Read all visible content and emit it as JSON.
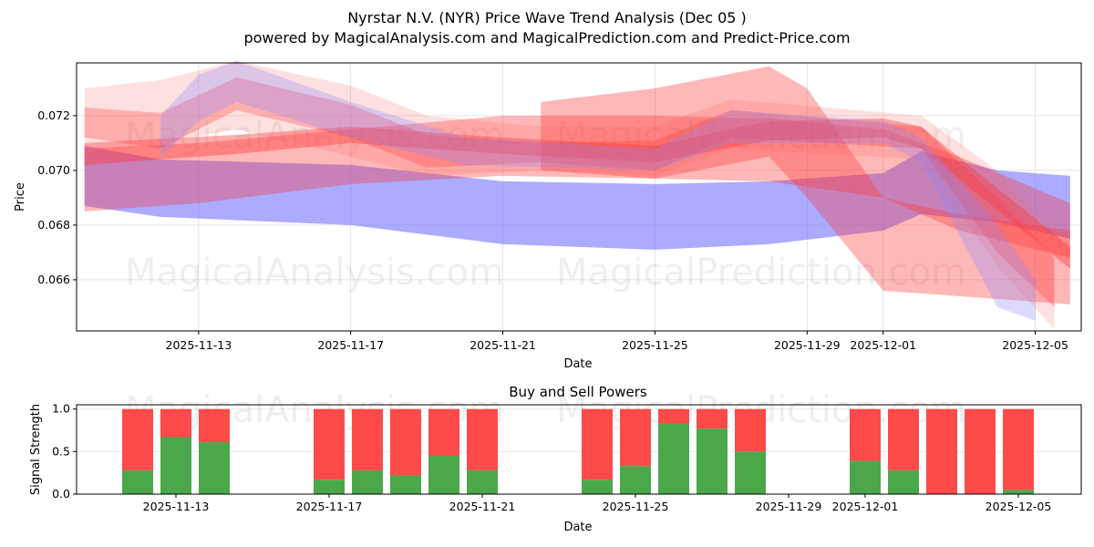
{
  "title_line1": "Nyrstar N.V. (NYR) Price Wave Trend Analysis (Dec 05 )",
  "title_line2": "powered by MagicalAnalysis.com and MagicalPrediction.com and Predict-Price.com",
  "watermarks": [
    "MagicalAnalysis.com",
    "MagicalPrediction.com"
  ],
  "colors": {
    "buy": "#4aa84a",
    "sell": "#ff4a4a",
    "blue_band": "#6666ff",
    "red_band": "#ff3333"
  },
  "chart_data": [
    {
      "type": "area",
      "title": "",
      "xlabel": "Date",
      "ylabel": "Price",
      "xlim": [
        "2025-11-09T19:00",
        "2025-12-06T05:00"
      ],
      "ylim": [
        0.06413,
        0.07393
      ],
      "yticks": [
        "0.066",
        "0.068",
        "0.070",
        "0.072"
      ],
      "xticks": [
        "2025-11-13",
        "2025-11-17",
        "2025-11-21",
        "2025-11-25",
        "2025-11-29",
        "2025-12-01",
        "2025-12-05"
      ],
      "grid": true,
      "bands": [
        {
          "color": "#6666ff",
          "opacity": 0.55,
          "x": [
            "2025-11-10",
            "2025-11-12",
            "2025-11-17",
            "2025-11-21",
            "2025-11-25",
            "2025-11-28",
            "2025-12-01",
            "2025-12-02",
            "2025-12-04",
            "2025-12-05T22:00"
          ],
          "upper": [
            0.0709,
            0.0704,
            0.0702,
            0.0696,
            0.0695,
            0.0696,
            0.0699,
            0.0707,
            0.07,
            0.0698
          ],
          "lower": [
            0.0687,
            0.0683,
            0.068,
            0.0673,
            0.0671,
            0.0673,
            0.0678,
            0.0684,
            0.0681,
            0.0675
          ]
        },
        {
          "color": "#ff3333",
          "opacity": 0.35,
          "x": [
            "2025-11-10",
            "2025-11-13",
            "2025-11-17",
            "2025-11-21",
            "2025-11-25",
            "2025-11-28",
            "2025-12-01",
            "2025-12-03",
            "2025-12-05T22:00"
          ],
          "upper": [
            0.0708,
            0.071,
            0.0715,
            0.072,
            0.072,
            0.0719,
            0.0715,
            0.0705,
            0.0688
          ],
          "lower": [
            0.0685,
            0.0688,
            0.0695,
            0.0698,
            0.0697,
            0.0696,
            0.069,
            0.0678,
            0.0668
          ]
        },
        {
          "color": "#ff3333",
          "opacity": 0.4,
          "x": [
            "2025-11-10",
            "2025-11-14",
            "2025-11-17",
            "2025-11-21",
            "2025-11-25",
            "2025-11-28",
            "2025-12-01",
            "2025-12-02",
            "2025-12-05T22:00"
          ],
          "upper": [
            0.071,
            0.0713,
            0.0716,
            0.0712,
            0.0709,
            0.0718,
            0.0719,
            0.0716,
            0.0672
          ],
          "lower": [
            0.0702,
            0.0706,
            0.071,
            0.0706,
            0.0703,
            0.0711,
            0.0712,
            0.0708,
            0.0664
          ]
        },
        {
          "color": "#ff3333",
          "opacity": 0.35,
          "x": [
            "2025-11-22",
            "2025-11-25",
            "2025-11-28",
            "2025-11-29",
            "2025-12-01",
            "2025-12-03",
            "2025-12-05T22:00"
          ],
          "upper": [
            0.0725,
            0.073,
            0.0738,
            0.073,
            0.069,
            0.0684,
            0.0678
          ],
          "lower": [
            0.07,
            0.0697,
            0.0705,
            0.069,
            0.0656,
            0.0654,
            0.0651
          ]
        },
        {
          "color": "#ff3333",
          "opacity": 0.3,
          "x": [
            "2025-11-10",
            "2025-11-12",
            "2025-11-14",
            "2025-11-17",
            "2025-11-19",
            "2025-11-22",
            "2025-11-25",
            "2025-11-27",
            "2025-12-02",
            "2025-12-04",
            "2025-12-05T12:00"
          ],
          "upper": [
            0.0723,
            0.0721,
            0.0734,
            0.0724,
            0.0713,
            0.071,
            0.0711,
            0.0722,
            0.0716,
            0.069,
            0.0668
          ],
          "lower": [
            0.0712,
            0.0708,
            0.0722,
            0.0712,
            0.0701,
            0.0703,
            0.07,
            0.0712,
            0.0708,
            0.067,
            0.065
          ]
        },
        {
          "color": "#ff6666",
          "opacity": 0.2,
          "x": [
            "2025-11-10",
            "2025-11-12",
            "2025-11-14",
            "2025-11-17",
            "2025-11-19",
            "2025-11-22",
            "2025-11-25",
            "2025-11-27",
            "2025-12-02",
            "2025-12-04",
            "2025-12-05T12:00"
          ],
          "upper": [
            0.073,
            0.0733,
            0.074,
            0.0731,
            0.072,
            0.0716,
            0.0716,
            0.0726,
            0.072,
            0.07,
            0.0675
          ],
          "lower": [
            0.0705,
            0.071,
            0.0715,
            0.0705,
            0.0698,
            0.07,
            0.0698,
            0.0708,
            0.0704,
            0.0665,
            0.0642
          ]
        },
        {
          "color": "#8888ff",
          "opacity": 0.3,
          "x": [
            "2025-11-12",
            "2025-11-13",
            "2025-11-14",
            "2025-11-17",
            "2025-11-20",
            "2025-11-25",
            "2025-11-27",
            "2025-12-01",
            "2025-12-02",
            "2025-12-04",
            "2025-12-05"
          ],
          "upper": [
            0.072,
            0.0735,
            0.074,
            0.0725,
            0.0712,
            0.0708,
            0.0722,
            0.0718,
            0.0712,
            0.068,
            0.066
          ],
          "lower": [
            0.0705,
            0.0718,
            0.0725,
            0.0712,
            0.0702,
            0.07,
            0.071,
            0.071,
            0.0703,
            0.065,
            0.0645
          ]
        }
      ]
    },
    {
      "type": "bar",
      "title": "Buy and Sell Powers",
      "xlabel": "Date",
      "ylabel": "Signal Strength",
      "ylim": [
        0,
        1.05
      ],
      "yticks": [
        "0.0",
        "0.5",
        "1.0"
      ],
      "xticks": [
        "2025-11-13",
        "2025-11-17",
        "2025-11-21",
        "2025-11-25",
        "2025-11-29",
        "2025-12-01",
        "2025-12-05"
      ],
      "categories": [
        "2025-11-12",
        "2025-11-13",
        "2025-11-14",
        "2025-11-17",
        "2025-11-18",
        "2025-11-19",
        "2025-11-20",
        "2025-11-21",
        "2025-11-24",
        "2025-11-25",
        "2025-11-26",
        "2025-11-27",
        "2025-11-28",
        "2025-12-01",
        "2025-12-02",
        "2025-12-03",
        "2025-12-04",
        "2025-12-05"
      ],
      "series": [
        {
          "name": "Buy",
          "values": [
            0.28,
            0.67,
            0.61,
            0.17,
            0.28,
            0.22,
            0.45,
            0.28,
            0.17,
            0.33,
            0.83,
            0.77,
            0.5,
            0.39,
            0.28,
            0.0,
            0.0,
            0.05
          ]
        },
        {
          "name": "Sell",
          "values": [
            0.72,
            0.33,
            0.39,
            0.83,
            0.72,
            0.78,
            0.55,
            0.72,
            0.83,
            0.67,
            0.17,
            0.23,
            0.5,
            0.61,
            0.72,
            1.0,
            1.0,
            0.95
          ]
        }
      ]
    }
  ]
}
